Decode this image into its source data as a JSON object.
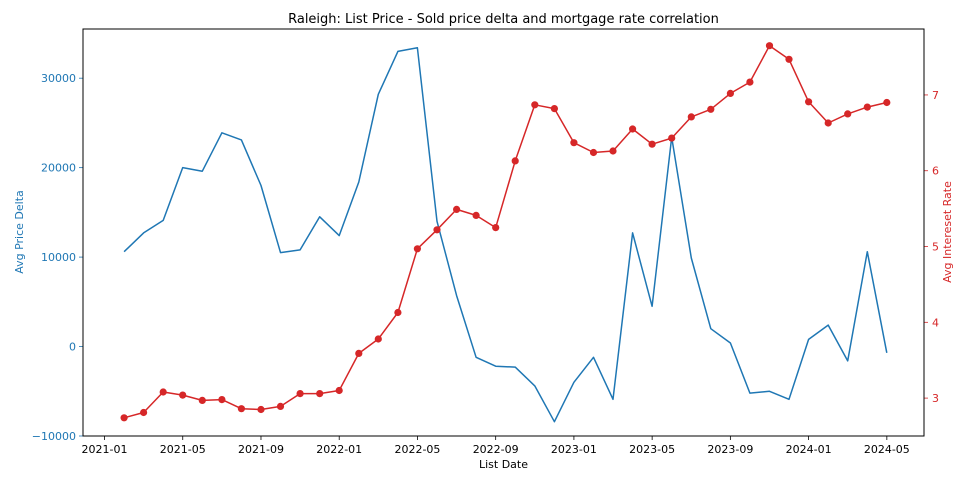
{
  "chart_data": {
    "type": "line",
    "title": "Raleigh: List Price - Sold price delta and mortgage rate correlation",
    "xlabel": "List Date",
    "ylabel": "Avg Price Delta",
    "y2label": "Avg Intereset Rate",
    "x_tick_labels": [
      "2021-01",
      "2021-05",
      "2021-09",
      "2022-01",
      "2022-05",
      "2022-09",
      "2023-01",
      "2023-05",
      "2023-09",
      "2024-01",
      "2024-05"
    ],
    "y_tick_labels": [
      "−10000",
      "0",
      "10000",
      "20000",
      "30000"
    ],
    "y2_tick_labels": [
      "3",
      "4",
      "5",
      "6",
      "7"
    ],
    "ylim": [
      -10000,
      35500
    ],
    "y2lim": [
      2.5,
      7.87
    ],
    "grid": false,
    "colors": {
      "left": "#1f77b4",
      "right": "#d62728"
    },
    "x": [
      "2021-02",
      "2021-03",
      "2021-04",
      "2021-05",
      "2021-06",
      "2021-07",
      "2021-08",
      "2021-09",
      "2021-10",
      "2021-11",
      "2021-12",
      "2022-01",
      "2022-02",
      "2022-03",
      "2022-04",
      "2022-05",
      "2022-06",
      "2022-07",
      "2022-08",
      "2022-09",
      "2022-10",
      "2022-11",
      "2022-12",
      "2023-01",
      "2023-02",
      "2023-03",
      "2023-04",
      "2023-05",
      "2023-06",
      "2023-07",
      "2023-08",
      "2023-09",
      "2023-10",
      "2023-11",
      "2023-12",
      "2024-01",
      "2024-02",
      "2024-03",
      "2024-04",
      "2024-05"
    ],
    "series": [
      {
        "axis": "left",
        "values": [
          10600,
          12700,
          14100,
          20000,
          19600,
          23900,
          23100,
          18000,
          10500,
          10800,
          14500,
          12400,
          18400,
          28200,
          33000,
          33400,
          14000,
          5700,
          -1200,
          -2200,
          -2300,
          -4400,
          -8400,
          -4000,
          -1200,
          -5900,
          12700,
          4500,
          23400,
          9900,
          2000,
          400,
          -5200,
          -5000,
          -5900,
          800,
          2400,
          -1600,
          10600,
          -700
        ]
      },
      {
        "axis": "right",
        "values": [
          2.74,
          2.81,
          3.08,
          3.04,
          2.97,
          2.98,
          2.86,
          2.85,
          2.89,
          3.06,
          3.06,
          3.1,
          3.59,
          3.78,
          4.13,
          4.97,
          5.22,
          5.49,
          5.41,
          5.25,
          6.13,
          6.87,
          6.82,
          6.37,
          6.24,
          6.26,
          6.55,
          6.35,
          6.43,
          6.71,
          6.81,
          7.02,
          7.17,
          7.65,
          7.47,
          6.91,
          6.63,
          6.75,
          6.84,
          6.9
        ]
      }
    ]
  }
}
